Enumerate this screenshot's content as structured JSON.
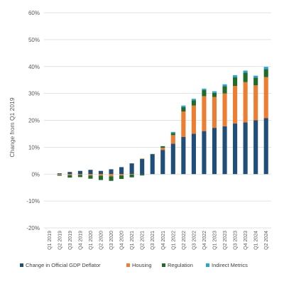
{
  "chart_data": {
    "type": "bar",
    "stacked": true,
    "ylabel": "Change from Q1 2019",
    "xlabel": "",
    "ylim": [
      -20,
      60
    ],
    "yticks": [
      -20,
      -10,
      0,
      10,
      20,
      30,
      40,
      50,
      60
    ],
    "ytick_labels": [
      "-20%",
      "-10%",
      "0%",
      "10%",
      "20%",
      "30%",
      "40%",
      "50%",
      "60%"
    ],
    "grid": true,
    "legend_position": "bottom",
    "categories": [
      "Q1 2019",
      "Q2 2019",
      "Q3 2019",
      "Q4 2019",
      "Q1 2020",
      "Q2 2020",
      "Q3 2020",
      "Q4 2020",
      "Q1 2021",
      "Q2 2021",
      "Q3 2021",
      "Q4 2021",
      "Q1 2022",
      "Q2 2022",
      "Q3 2022",
      "Q4 2022",
      "Q1 2023",
      "Q2 2023",
      "Q3 2023",
      "Q4 2023",
      "Q1 2024",
      "Q2 2024"
    ],
    "series": [
      {
        "name": "Change in Official GDP Deflator",
        "color": "#1F4E79",
        "values": [
          0,
          0.3,
          0.8,
          1.2,
          1.6,
          1.2,
          1.8,
          2.6,
          4.0,
          5.6,
          7.3,
          9.0,
          11.3,
          13.8,
          15.0,
          16.0,
          17.2,
          17.8,
          18.8,
          19.2,
          20.0,
          20.8
        ]
      },
      {
        "name": "Housing",
        "color": "#ED7D31",
        "values": [
          0,
          -0.3,
          -0.4,
          -0.3,
          -0.5,
          -0.6,
          -0.8,
          -0.5,
          -0.2,
          0.2,
          0,
          0.8,
          3.2,
          9.5,
          10.5,
          13.0,
          11.5,
          12.2,
          14.0,
          15.0,
          13.0,
          15.3
        ]
      },
      {
        "name": "Regulation",
        "color": "#1E6B2A",
        "values": [
          0,
          -0.3,
          -0.9,
          -0.8,
          -1.2,
          -1.6,
          -1.7,
          -1.3,
          -1.0,
          -0.5,
          0.2,
          0.6,
          0.8,
          1.6,
          1.9,
          2.3,
          1.5,
          2.7,
          3.2,
          3.5,
          2.9,
          2.9
        ]
      },
      {
        "name": "Indirect Metrics",
        "color": "#2AA4D4",
        "values": [
          0,
          0,
          0,
          0,
          0,
          0,
          0,
          0,
          0,
          0,
          0,
          0,
          0.4,
          0.6,
          0.6,
          0.5,
          0.6,
          0.7,
          0.8,
          0.8,
          0.7,
          0.9
        ]
      }
    ]
  }
}
